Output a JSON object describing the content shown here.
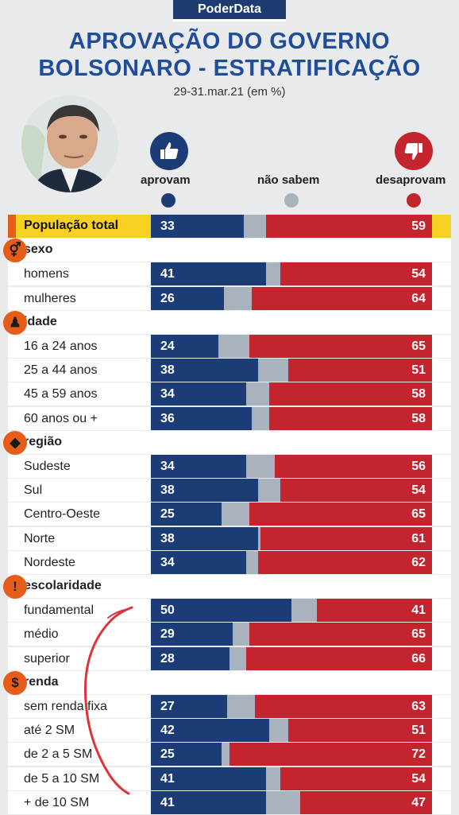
{
  "brand": "PoderData",
  "title_line1": "APROVAÇÃO DO GOVERNO",
  "title_line2": "BOLSONARO - ESTRATIFICAÇÃO",
  "subtitle": "29-31.mar.21 (em %)",
  "legend": {
    "aprovam": "aprovam",
    "nao_sabem": "não sabem",
    "desaprovam": "desaprovam"
  },
  "colors": {
    "aprovam": "#1c3c78",
    "nao_sabem": "#a9b3bd",
    "desaprovam": "#c4242d",
    "category_icon": "#e65d1a",
    "highlight": "#f6d122"
  },
  "chart_data": {
    "type": "bar",
    "stacked": true,
    "orientation": "horizontal",
    "title": "APROVAÇÃO DO GOVERNO BOLSONARO - ESTRATIFICAÇÃO",
    "subtitle": "29-31.mar.21 (em %)",
    "xlim": [
      0,
      100
    ],
    "series_names": [
      "aprovam",
      "não sabem",
      "desaprovam"
    ],
    "total": {
      "label": "População total",
      "aprovam": 33,
      "desaprovam": 59
    },
    "groups": [
      {
        "name": "sexo",
        "icon": "gender-icon",
        "rows": [
          {
            "label": "homens",
            "aprovam": 41,
            "desaprovam": 54
          },
          {
            "label": "mulheres",
            "aprovam": 26,
            "desaprovam": 64
          }
        ]
      },
      {
        "name": "idade",
        "icon": "person-icon",
        "rows": [
          {
            "label": "16 a 24 anos",
            "aprovam": 24,
            "desaprovam": 65
          },
          {
            "label": "25 a 44 anos",
            "aprovam": 38,
            "desaprovam": 51
          },
          {
            "label": "45 a 59 anos",
            "aprovam": 34,
            "desaprovam": 58
          },
          {
            "label": "60 anos ou +",
            "aprovam": 36,
            "desaprovam": 58
          }
        ]
      },
      {
        "name": "região",
        "icon": "brazil-map-icon",
        "rows": [
          {
            "label": "Sudeste",
            "aprovam": 34,
            "desaprovam": 56
          },
          {
            "label": "Sul",
            "aprovam": 38,
            "desaprovam": 54
          },
          {
            "label": "Centro-Oeste",
            "aprovam": 25,
            "desaprovam": 65
          },
          {
            "label": "Norte",
            "aprovam": 38,
            "desaprovam": 61
          },
          {
            "label": "Nordeste",
            "aprovam": 34,
            "desaprovam": 62
          }
        ]
      },
      {
        "name": "escolaridade",
        "icon": "exclamation-icon",
        "rows": [
          {
            "label": "fundamental",
            "aprovam": 50,
            "desaprovam": 41
          },
          {
            "label": "médio",
            "aprovam": 29,
            "desaprovam": 65
          },
          {
            "label": "superior",
            "aprovam": 28,
            "desaprovam": 66
          }
        ]
      },
      {
        "name": "renda",
        "icon": "dollar-icon",
        "rows": [
          {
            "label": "sem renda fixa",
            "aprovam": 27,
            "desaprovam": 63
          },
          {
            "label": "até 2 SM",
            "aprovam": 42,
            "desaprovam": 51
          },
          {
            "label": "de 2 a 5 SM",
            "aprovam": 25,
            "desaprovam": 72
          },
          {
            "label": "de 5 a 10 SM",
            "aprovam": 41,
            "desaprovam": 54
          },
          {
            "label": "+ de 10 SM",
            "aprovam": 41,
            "desaprovam": 47
          }
        ]
      }
    ]
  }
}
